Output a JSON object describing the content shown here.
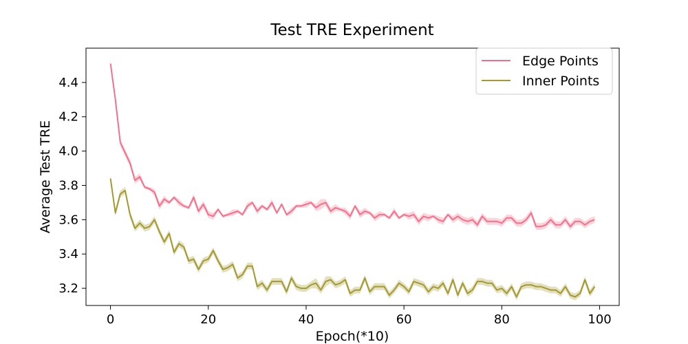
{
  "chart_data": {
    "type": "line",
    "title": "Test TRE Experiment",
    "xlabel": "Epoch(*10)",
    "ylabel": "Average Test TRE",
    "xlim": [
      -5,
      104
    ],
    "ylim": [
      3.1,
      4.6
    ],
    "xticks": [
      0,
      20,
      40,
      60,
      80,
      100
    ],
    "yticks": [
      3.2,
      3.4,
      3.6,
      3.8,
      4.0,
      4.2,
      4.4
    ],
    "ytick_labels": [
      "3.2",
      "3.4",
      "3.6",
      "3.8",
      "4.0",
      "4.2",
      "4.4"
    ],
    "grid": false,
    "legend_position": "top-right",
    "x": [
      0,
      1,
      2,
      3,
      4,
      5,
      6,
      7,
      8,
      9,
      10,
      11,
      12,
      13,
      14,
      15,
      16,
      17,
      18,
      19,
      20,
      21,
      22,
      23,
      24,
      25,
      26,
      27,
      28,
      29,
      30,
      31,
      32,
      33,
      34,
      35,
      36,
      37,
      38,
      39,
      40,
      41,
      42,
      43,
      44,
      45,
      46,
      47,
      48,
      49,
      50,
      51,
      52,
      53,
      54,
      55,
      56,
      57,
      58,
      59,
      60,
      61,
      62,
      63,
      64,
      65,
      66,
      67,
      68,
      69,
      70,
      71,
      72,
      73,
      74,
      75,
      76,
      77,
      78,
      79,
      80,
      81,
      82,
      83,
      84,
      85,
      86,
      87,
      88,
      89,
      90,
      91,
      92,
      93,
      94,
      95,
      96,
      97,
      98,
      99
    ],
    "series": [
      {
        "name": "Edge Points",
        "color": "#f2708a",
        "values": [
          4.51,
          4.3,
          4.05,
          3.99,
          3.93,
          3.83,
          3.85,
          3.79,
          3.78,
          3.76,
          3.68,
          3.72,
          3.7,
          3.73,
          3.7,
          3.68,
          3.67,
          3.73,
          3.65,
          3.69,
          3.63,
          3.62,
          3.66,
          3.62,
          3.63,
          3.64,
          3.65,
          3.63,
          3.68,
          3.7,
          3.65,
          3.68,
          3.66,
          3.7,
          3.64,
          3.69,
          3.63,
          3.65,
          3.68,
          3.68,
          3.69,
          3.7,
          3.67,
          3.69,
          3.7,
          3.65,
          3.67,
          3.66,
          3.65,
          3.62,
          3.68,
          3.63,
          3.65,
          3.64,
          3.61,
          3.63,
          3.63,
          3.61,
          3.65,
          3.61,
          3.63,
          3.62,
          3.63,
          3.59,
          3.62,
          3.61,
          3.62,
          3.6,
          3.59,
          3.63,
          3.6,
          3.62,
          3.6,
          3.59,
          3.6,
          3.57,
          3.62,
          3.59,
          3.59,
          3.59,
          3.58,
          3.61,
          3.61,
          3.58,
          3.58,
          3.6,
          3.64,
          3.56,
          3.56,
          3.57,
          3.6,
          3.57,
          3.57,
          3.6,
          3.56,
          3.59,
          3.59,
          3.57,
          3.59,
          3.6
        ],
        "band": [
          0.01,
          0.03,
          0.02,
          0.02,
          0.02,
          0.02,
          0.02,
          0.01,
          0.01,
          0.02,
          0.02,
          0.02,
          0.01,
          0.01,
          0.02,
          0.01,
          0.01,
          0.02,
          0.02,
          0.02,
          0.02,
          0.02,
          0.01,
          0.01,
          0.01,
          0.02,
          0.01,
          0.01,
          0.02,
          0.01,
          0.02,
          0.01,
          0.01,
          0.02,
          0.01,
          0.01,
          0.01,
          0.02,
          0.01,
          0.01,
          0.02,
          0.01,
          0.02,
          0.03,
          0.02,
          0.02,
          0.02,
          0.01,
          0.02,
          0.02,
          0.01,
          0.02,
          0.02,
          0.01,
          0.02,
          0.02,
          0.01,
          0.01,
          0.02,
          0.01,
          0.01,
          0.02,
          0.02,
          0.02,
          0.02,
          0.02,
          0.01,
          0.02,
          0.02,
          0.01,
          0.02,
          0.02,
          0.02,
          0.02,
          0.02,
          0.02,
          0.02,
          0.02,
          0.02,
          0.02,
          0.02,
          0.02,
          0.02,
          0.02,
          0.02,
          0.02,
          0.02,
          0.02,
          0.02,
          0.02,
          0.02,
          0.02,
          0.02,
          0.02,
          0.02,
          0.02,
          0.02,
          0.02,
          0.02,
          0.02
        ]
      },
      {
        "name": "Inner Points",
        "color": "#a3992f",
        "values": [
          3.84,
          3.64,
          3.75,
          3.77,
          3.63,
          3.55,
          3.58,
          3.55,
          3.56,
          3.6,
          3.53,
          3.47,
          3.52,
          3.41,
          3.46,
          3.44,
          3.36,
          3.37,
          3.31,
          3.36,
          3.37,
          3.42,
          3.36,
          3.31,
          3.32,
          3.34,
          3.26,
          3.28,
          3.33,
          3.33,
          3.21,
          3.23,
          3.19,
          3.24,
          3.24,
          3.24,
          3.18,
          3.26,
          3.21,
          3.2,
          3.2,
          3.22,
          3.23,
          3.19,
          3.24,
          3.25,
          3.22,
          3.23,
          3.25,
          3.17,
          3.19,
          3.19,
          3.26,
          3.18,
          3.21,
          3.21,
          3.21,
          3.16,
          3.19,
          3.23,
          3.21,
          3.18,
          3.24,
          3.23,
          3.22,
          3.18,
          3.21,
          3.2,
          3.23,
          3.17,
          3.25,
          3.16,
          3.23,
          3.17,
          3.19,
          3.24,
          3.24,
          3.23,
          3.23,
          3.19,
          3.2,
          3.17,
          3.21,
          3.15,
          3.21,
          3.22,
          3.22,
          3.21,
          3.21,
          3.2,
          3.19,
          3.19,
          3.17,
          3.21,
          3.16,
          3.15,
          3.17,
          3.25,
          3.17,
          3.21
        ],
        "band": [
          0.02,
          0.02,
          0.02,
          0.02,
          0.02,
          0.02,
          0.02,
          0.02,
          0.02,
          0.02,
          0.02,
          0.02,
          0.02,
          0.02,
          0.02,
          0.02,
          0.02,
          0.02,
          0.02,
          0.02,
          0.02,
          0.02,
          0.02,
          0.02,
          0.02,
          0.02,
          0.02,
          0.02,
          0.02,
          0.02,
          0.02,
          0.02,
          0.02,
          0.02,
          0.02,
          0.02,
          0.02,
          0.02,
          0.02,
          0.02,
          0.02,
          0.02,
          0.03,
          0.02,
          0.03,
          0.02,
          0.02,
          0.02,
          0.02,
          0.02,
          0.02,
          0.02,
          0.02,
          0.02,
          0.02,
          0.02,
          0.02,
          0.02,
          0.02,
          0.02,
          0.02,
          0.02,
          0.02,
          0.02,
          0.02,
          0.02,
          0.02,
          0.02,
          0.02,
          0.02,
          0.02,
          0.02,
          0.02,
          0.02,
          0.02,
          0.02,
          0.02,
          0.02,
          0.02,
          0.02,
          0.02,
          0.02,
          0.02,
          0.02,
          0.02,
          0.02,
          0.02,
          0.02,
          0.02,
          0.02,
          0.02,
          0.02,
          0.02,
          0.02,
          0.02,
          0.02,
          0.02,
          0.02,
          0.02,
          0.02
        ]
      }
    ]
  }
}
